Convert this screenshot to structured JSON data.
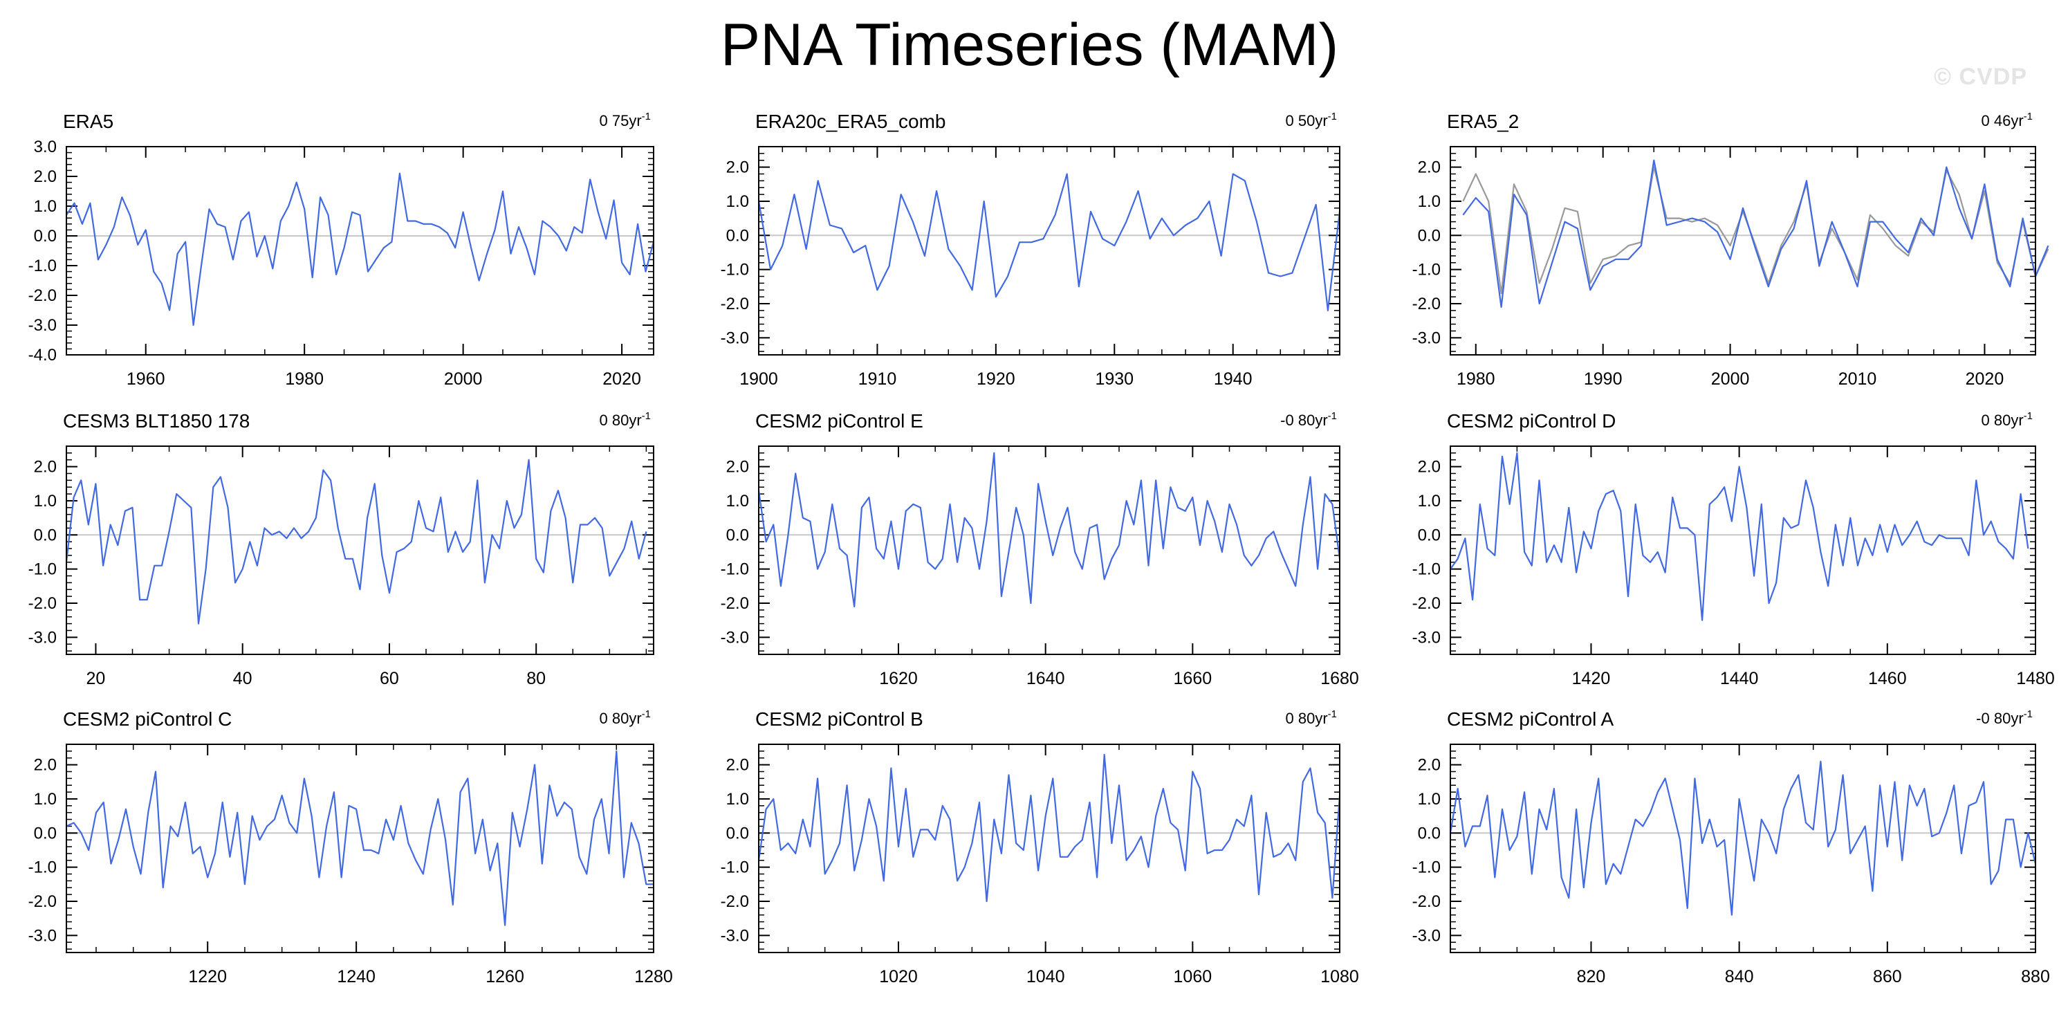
{
  "title": "PNA Timeseries (MAM)",
  "watermark": "© CVDP",
  "colors": {
    "series": "#4169e1",
    "reference": "#999999",
    "zero_line": "#c8c8c8",
    "axes": "#000000"
  },
  "chart_data": [
    {
      "type": "line",
      "title": "ERA5",
      "trend": "0 75yr",
      "trend_unit": "-1",
      "xlim": [
        1950,
        2024
      ],
      "ylim": [
        -4.0,
        3.0
      ],
      "yticks": [
        -4.0,
        -3.0,
        -2.0,
        -1.0,
        0.0,
        1.0,
        2.0,
        3.0
      ],
      "xticks": [
        1960,
        1980,
        2000,
        2020
      ],
      "x_start": 1950,
      "x_step": 1,
      "series": [
        {
          "values": [
            0.7,
            1.1,
            0.4,
            1.1,
            -0.8,
            -0.3,
            0.3,
            1.3,
            0.7,
            -0.3,
            0.2,
            -1.2,
            -1.6,
            -2.5,
            -0.6,
            -0.2,
            -3.0,
            -1.0,
            0.9,
            0.4,
            0.3,
            -0.8,
            0.5,
            0.8,
            -0.7,
            0.0,
            -1.1,
            0.5,
            1.0,
            1.8,
            0.9,
            -1.4,
            1.3,
            0.7,
            -1.3,
            -0.4,
            0.8,
            0.7,
            -1.2,
            -0.8,
            -0.4,
            -0.2,
            2.1,
            0.5,
            0.5,
            0.4,
            0.4,
            0.3,
            0.1,
            -0.4,
            0.8,
            -0.4,
            -1.5,
            -0.6,
            0.2,
            1.5,
            -0.6,
            0.3,
            -0.4,
            -1.3,
            0.5,
            0.3,
            0.0,
            -0.5,
            0.3,
            0.1,
            1.9,
            0.8,
            -0.1,
            1.2,
            -0.9,
            -1.3,
            0.4,
            -1.2,
            -0.2
          ]
        }
      ]
    },
    {
      "type": "line",
      "title": "ERA20c_ERA5_comb",
      "trend": "0 50yr",
      "trend_unit": "-1",
      "xlim": [
        1900,
        1949
      ],
      "ylim": [
        -3.5,
        2.6
      ],
      "yticks": [
        -3.0,
        -2.0,
        -1.0,
        0.0,
        1.0,
        2.0
      ],
      "xticks": [
        1900,
        1910,
        1920,
        1930,
        1940
      ],
      "x_start": 1900,
      "x_step": 1,
      "series": [
        {
          "values": [
            1.0,
            -1.0,
            -0.3,
            1.2,
            -0.4,
            1.6,
            0.3,
            0.2,
            -0.5,
            -0.3,
            -1.6,
            -0.9,
            1.2,
            0.4,
            -0.6,
            1.3,
            -0.4,
            -0.9,
            -1.6,
            1.0,
            -1.8,
            -1.2,
            -0.2,
            -0.2,
            -0.1,
            0.6,
            1.8,
            -1.5,
            0.7,
            -0.1,
            -0.3,
            0.4,
            1.3,
            -0.1,
            0.5,
            0.0,
            0.3,
            0.5,
            1.0,
            -0.6,
            1.8,
            1.6,
            0.4,
            -1.1,
            -1.2,
            -1.1,
            -0.1,
            0.9,
            -2.2,
            0.7
          ]
        }
      ]
    },
    {
      "type": "line",
      "title": "ERA5_2",
      "trend": "0 46yr",
      "trend_unit": "-1",
      "xlim": [
        1978,
        2024
      ],
      "ylim": [
        -3.5,
        2.6
      ],
      "yticks": [
        -3.0,
        -2.0,
        -1.0,
        0.0,
        1.0,
        2.0
      ],
      "xticks": [
        1980,
        1990,
        2000,
        2010,
        2020
      ],
      "x_start": 1979,
      "x_step": 1,
      "series": [
        {
          "values": [
            0.6,
            1.1,
            0.7,
            -2.1,
            1.2,
            0.6,
            -2.0,
            -0.8,
            0.4,
            0.2,
            -1.6,
            -0.9,
            -0.7,
            -0.7,
            -0.3,
            2.2,
            0.3,
            0.4,
            0.5,
            0.4,
            0.1,
            -0.7,
            0.8,
            -0.4,
            -1.5,
            -0.4,
            0.2,
            1.6,
            -0.9,
            0.4,
            -0.5,
            -1.5,
            0.4,
            0.4,
            -0.1,
            -0.5,
            0.5,
            0.0,
            2.0,
            0.8,
            -0.1,
            1.5,
            -0.7,
            -1.5,
            0.5,
            -1.2,
            -0.3
          ]
        },
        {
          "values": [
            1.0,
            1.8,
            1.0,
            -1.7,
            1.5,
            0.7,
            -1.4,
            -0.4,
            0.8,
            0.7,
            -1.4,
            -0.7,
            -0.6,
            -0.3,
            -0.2,
            2.0,
            0.5,
            0.5,
            0.4,
            0.5,
            0.3,
            -0.3,
            0.7,
            -0.3,
            -1.4,
            -0.3,
            0.4,
            1.5,
            -0.8,
            0.2,
            -0.5,
            -1.3,
            0.6,
            0.2,
            -0.3,
            -0.6,
            0.4,
            0.1,
            1.9,
            1.2,
            -0.1,
            1.3,
            -0.8,
            -1.4,
            0.4,
            -1.2,
            -0.4
          ]
        }
      ]
    },
    {
      "type": "line",
      "title": "CESM3 BLT1850 178",
      "trend": "0 80yr",
      "trend_unit": "-1",
      "xlim": [
        16,
        96
      ],
      "ylim": [
        -3.5,
        2.6
      ],
      "yticks": [
        -3.0,
        -2.0,
        -1.0,
        0.0,
        1.0,
        2.0
      ],
      "xticks": [
        20,
        40,
        60,
        80
      ],
      "x_start": 16,
      "x_step": 1,
      "series": [
        {
          "values": [
            -0.8,
            1.1,
            1.6,
            0.3,
            1.5,
            -0.9,
            0.3,
            -0.3,
            0.7,
            0.8,
            -1.9,
            -1.9,
            -0.9,
            -0.9,
            0.1,
            1.2,
            1.0,
            0.8,
            -2.6,
            -1.0,
            1.4,
            1.7,
            0.8,
            -1.4,
            -1.0,
            -0.2,
            -0.9,
            0.2,
            0.0,
            0.1,
            -0.1,
            0.2,
            -0.1,
            0.1,
            0.5,
            1.9,
            1.6,
            0.2,
            -0.7,
            -0.7,
            -1.6,
            0.5,
            1.5,
            -0.6,
            -1.7,
            -0.5,
            -0.4,
            -0.2,
            1.0,
            0.2,
            0.1,
            1.1,
            -0.5,
            0.1,
            -0.5,
            -0.2,
            1.6,
            -1.4,
            0.0,
            -0.4,
            1.0,
            0.2,
            0.6,
            2.2,
            -0.7,
            -1.1,
            0.7,
            1.3,
            0.5,
            -1.4,
            0.3,
            0.3,
            0.5,
            0.2,
            -1.2,
            -0.8,
            -0.4,
            0.4,
            -0.7,
            0.1
          ]
        }
      ]
    },
    {
      "type": "line",
      "title": "CESM2 piControl E",
      "trend": "-0 80yr",
      "trend_unit": "-1",
      "xlim": [
        1601,
        1680
      ],
      "ylim": [
        -3.5,
        2.6
      ],
      "yticks": [
        -3.0,
        -2.0,
        -1.0,
        0.0,
        1.0,
        2.0
      ],
      "xticks": [
        1620,
        1640,
        1660,
        1680
      ],
      "x_start": 1601,
      "x_step": 1,
      "series": [
        {
          "values": [
            1.3,
            -0.2,
            0.3,
            -1.5,
            0.0,
            1.8,
            0.5,
            0.4,
            -1.0,
            -0.5,
            0.9,
            -0.4,
            -0.6,
            -2.1,
            0.8,
            1.1,
            -0.4,
            -0.7,
            0.4,
            -1.0,
            0.7,
            0.9,
            0.8,
            -0.8,
            -1.0,
            -0.7,
            0.9,
            -0.8,
            0.5,
            0.2,
            -1.0,
            0.4,
            2.4,
            -1.8,
            -0.5,
            0.8,
            0.0,
            -2.0,
            1.5,
            0.4,
            -0.6,
            0.2,
            0.8,
            -0.5,
            -1.0,
            0.2,
            0.3,
            -1.3,
            -0.7,
            -0.3,
            1.0,
            0.3,
            1.6,
            -0.9,
            1.6,
            -0.4,
            1.4,
            0.8,
            0.7,
            1.1,
            -0.3,
            1.0,
            0.4,
            -0.5,
            0.9,
            0.3,
            -0.6,
            -0.9,
            -0.6,
            -0.1,
            0.1,
            -0.5,
            -1.0,
            -1.5,
            0.3,
            1.7,
            -1.0,
            1.2,
            0.9,
            -0.7
          ]
        }
      ]
    },
    {
      "type": "line",
      "title": "CESM2 piControl D",
      "trend": "0 80yr",
      "trend_unit": "-1",
      "xlim": [
        1401,
        1480
      ],
      "ylim": [
        -3.5,
        2.6
      ],
      "yticks": [
        -3.0,
        -2.0,
        -1.0,
        0.0,
        1.0,
        2.0
      ],
      "xticks": [
        1420,
        1440,
        1460,
        1480
      ],
      "x_start": 1401,
      "x_step": 1,
      "series": [
        {
          "values": [
            -1.0,
            -0.7,
            -0.1,
            -1.9,
            0.9,
            -0.4,
            -0.6,
            2.3,
            0.9,
            2.4,
            -0.5,
            -0.9,
            1.6,
            -0.8,
            -0.3,
            -0.8,
            0.8,
            -1.1,
            0.1,
            -0.4,
            0.7,
            1.2,
            1.3,
            0.7,
            -1.8,
            0.9,
            -0.6,
            -0.8,
            -0.5,
            -1.1,
            1.1,
            0.2,
            0.2,
            0.0,
            -2.5,
            0.9,
            1.1,
            1.4,
            0.4,
            2.0,
            0.8,
            -1.2,
            0.9,
            -2.0,
            -1.4,
            0.5,
            0.2,
            0.3,
            1.6,
            0.8,
            -0.5,
            -1.5,
            0.3,
            -0.9,
            0.5,
            -0.9,
            -0.1,
            -0.6,
            0.3,
            -0.5,
            0.3,
            -0.3,
            0.0,
            0.4,
            -0.2,
            -0.3,
            0.0,
            -0.1,
            -0.1,
            -0.1,
            -0.6,
            1.6,
            0.0,
            0.4,
            -0.2,
            -0.4,
            -0.7,
            1.2,
            -0.4
          ]
        }
      ]
    },
    {
      "type": "line",
      "title": "CESM2 piControl C",
      "trend": "0 80yr",
      "trend_unit": "-1",
      "xlim": [
        1201,
        1280
      ],
      "ylim": [
        -3.5,
        2.6
      ],
      "yticks": [
        -3.0,
        -2.0,
        -1.0,
        0.0,
        1.0,
        2.0
      ],
      "xticks": [
        1220,
        1240,
        1260,
        1280
      ],
      "x_start": 1201,
      "x_step": 1,
      "series": [
        {
          "values": [
            0.2,
            0.3,
            0.0,
            -0.5,
            0.6,
            0.9,
            -0.9,
            -0.2,
            0.7,
            -0.4,
            -1.2,
            0.6,
            1.8,
            -1.6,
            0.2,
            -0.1,
            0.9,
            -0.6,
            -0.4,
            -1.3,
            -0.6,
            0.9,
            -0.7,
            0.6,
            -1.5,
            0.5,
            -0.2,
            0.2,
            0.4,
            1.1,
            0.3,
            0.0,
            1.6,
            0.5,
            -1.3,
            0.2,
            1.2,
            -1.3,
            0.8,
            0.7,
            -0.5,
            -0.5,
            -0.6,
            0.4,
            -0.2,
            0.8,
            -0.3,
            -0.8,
            -1.2,
            0.1,
            1.0,
            -0.2,
            -2.1,
            1.2,
            1.6,
            -0.6,
            0.4,
            -1.1,
            -0.3,
            -2.7,
            0.6,
            -0.4,
            0.7,
            2.0,
            -0.9,
            1.4,
            0.5,
            0.9,
            0.7,
            -0.7,
            -1.2,
            0.4,
            1.0,
            -0.6,
            2.4,
            -1.3,
            0.3,
            -0.3,
            -1.5,
            -1.5
          ]
        }
      ]
    },
    {
      "type": "line",
      "title": "CESM2 piControl B",
      "trend": "0 80yr",
      "trend_unit": "-1",
      "xlim": [
        1001,
        1080
      ],
      "ylim": [
        -3.5,
        2.6
      ],
      "yticks": [
        -3.0,
        -2.0,
        -1.0,
        0.0,
        1.0,
        2.0
      ],
      "xticks": [
        1020,
        1040,
        1060,
        1080
      ],
      "x_start": 1001,
      "x_step": 1,
      "series": [
        {
          "values": [
            -0.8,
            0.7,
            1.0,
            -0.5,
            -0.3,
            -0.6,
            0.4,
            -0.4,
            1.6,
            -1.2,
            -0.8,
            -0.3,
            1.4,
            -1.1,
            -0.2,
            1.0,
            0.2,
            -1.4,
            1.9,
            -0.4,
            1.3,
            -0.7,
            0.1,
            0.1,
            -0.2,
            0.8,
            0.4,
            -1.4,
            -1.0,
            -0.3,
            0.9,
            -2.0,
            0.4,
            -0.6,
            1.7,
            -0.3,
            -0.5,
            1.1,
            -1.1,
            0.5,
            1.6,
            -0.7,
            -0.7,
            -0.4,
            -0.2,
            0.9,
            -1.3,
            2.3,
            -0.3,
            1.4,
            -0.8,
            -0.5,
            -0.1,
            -1.0,
            0.5,
            1.3,
            0.3,
            0.1,
            -1.1,
            1.8,
            1.3,
            -0.6,
            -0.5,
            -0.5,
            -0.2,
            0.4,
            0.2,
            1.1,
            -1.8,
            0.6,
            -0.7,
            -0.6,
            -0.3,
            -0.8,
            1.5,
            1.9,
            0.6,
            0.3,
            -1.9,
            1.1
          ]
        }
      ]
    },
    {
      "type": "line",
      "title": "CESM2 piControl A",
      "trend": "-0 80yr",
      "trend_unit": "-1",
      "xlim": [
        801,
        880
      ],
      "ylim": [
        -3.5,
        2.6
      ],
      "yticks": [
        -3.0,
        -2.0,
        -1.0,
        0.0,
        1.0,
        2.0
      ],
      "xticks": [
        820,
        840,
        860,
        880
      ],
      "x_start": 801,
      "x_step": 1,
      "series": [
        {
          "values": [
            0.0,
            1.3,
            -0.4,
            0.2,
            0.2,
            1.1,
            -1.3,
            0.7,
            -0.5,
            -0.1,
            1.2,
            -1.2,
            0.7,
            0.1,
            1.3,
            -1.3,
            -1.9,
            0.7,
            -1.6,
            0.3,
            1.6,
            -1.5,
            -0.9,
            -1.2,
            -0.4,
            0.4,
            0.2,
            0.6,
            1.2,
            1.6,
            0.7,
            -0.2,
            -2.2,
            1.6,
            -0.3,
            0.4,
            -0.4,
            -0.2,
            -2.4,
            1.0,
            -0.2,
            -1.4,
            0.4,
            0.0,
            -0.6,
            0.7,
            1.3,
            1.7,
            0.3,
            0.1,
            2.1,
            -0.4,
            0.1,
            1.7,
            -0.6,
            -0.2,
            0.2,
            -1.7,
            1.4,
            -0.4,
            1.5,
            -0.8,
            1.4,
            0.8,
            1.3,
            -0.1,
            0.0,
            0.6,
            1.4,
            -0.6,
            0.8,
            0.9,
            1.5,
            -1.5,
            -1.1,
            0.4,
            0.4,
            -1.0,
            0.0,
            -0.9
          ]
        }
      ]
    }
  ]
}
